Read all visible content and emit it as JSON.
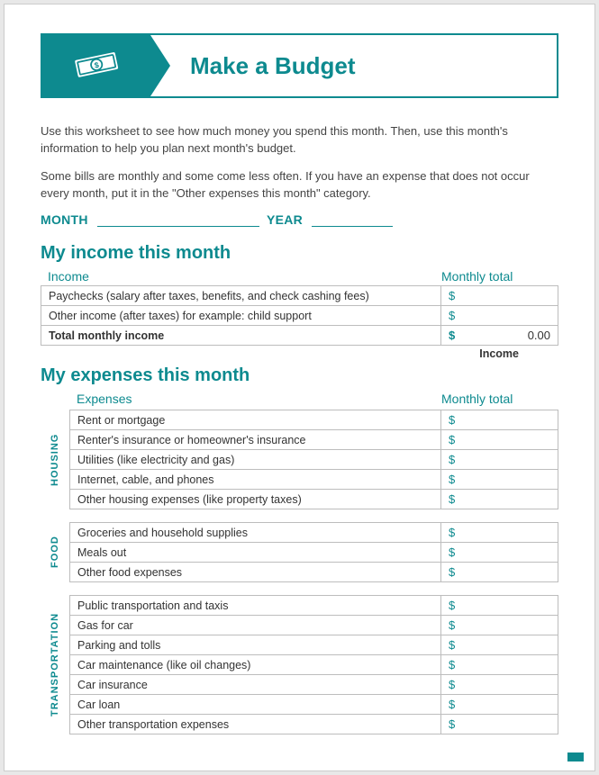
{
  "colors": {
    "teal": "#0d8a8f",
    "border": "#bdbdbd",
    "text": "#333",
    "bg": "#ffffff"
  },
  "header": {
    "title": "Make a Budget",
    "icon": "money-bill-icon"
  },
  "intro": {
    "p1": "Use this worksheet to see how much money you spend this month. Then, use this month's information to help you plan next month's budget.",
    "p2": "Some bills are monthly and some come less often. If you have an expense that does not occur every month, put it in the \"Other expenses this month\" category."
  },
  "dateline": {
    "month_label": "MONTH",
    "year_label": "YEAR"
  },
  "income": {
    "heading": "My income this month",
    "col_left": "Income",
    "col_right": "Monthly total",
    "rows": [
      "Paychecks (salary after taxes, benefits, and check cashing fees)",
      "Other income (after taxes) for example: child support"
    ],
    "total_label": "Total monthly income",
    "total_value": "0.00",
    "currency": "$",
    "footer": "Income"
  },
  "expenses": {
    "heading": "My expenses this month",
    "col_left": "Expenses",
    "col_right": "Monthly total",
    "currency": "$",
    "categories": [
      {
        "label": "HOUSING",
        "rows": [
          "Rent or mortgage",
          "Renter's insurance or homeowner's insurance",
          "Utilities (like electricity and gas)",
          "Internet, cable, and phones",
          "Other housing expenses (like property taxes)"
        ]
      },
      {
        "label": "FOOD",
        "rows": [
          "Groceries and household supplies",
          "Meals out",
          "Other food expenses"
        ]
      },
      {
        "label": "TRANSPORTATION",
        "rows": [
          "Public transportation and taxis",
          "Gas for car",
          "Parking and tolls",
          "Car maintenance (like oil changes)",
          "Car insurance",
          "Car loan",
          "Other transportation expenses"
        ]
      }
    ]
  }
}
